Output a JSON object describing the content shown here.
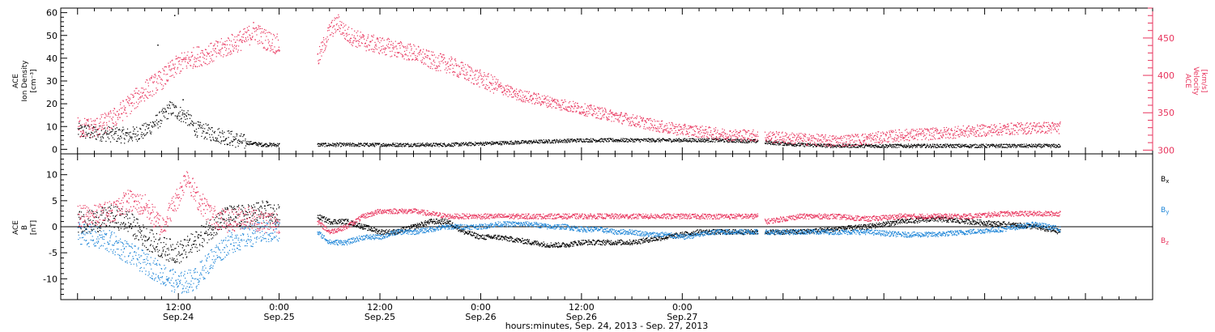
{
  "colors": {
    "black": "#000000",
    "red": "#e8335c",
    "blue": "#1f86d8"
  },
  "chart_data": [
    {
      "type": "scatter",
      "panel": "top",
      "ylabel_left": [
        "ACE",
        "Ion Density",
        "[cm⁻³]"
      ],
      "ylabel_right": [
        "ACE",
        "Velocity",
        "[km/s]"
      ],
      "ylim_left": [
        -2,
        62
      ],
      "yticks_left": [
        0,
        10,
        20,
        30,
        40,
        50,
        60
      ],
      "ylim_right": [
        295,
        490
      ],
      "yticks_right": [
        300,
        350,
        400,
        450
      ],
      "data_gaps_hours": [
        [
          24.0,
          28.5
        ],
        [
          81.0,
          81.8
        ]
      ],
      "series": [
        {
          "color": "black",
          "axis": "left",
          "points": [
            [
              0,
              8
            ],
            [
              3,
              7
            ],
            [
              6,
              6
            ],
            [
              8,
              8
            ],
            [
              10,
              14
            ],
            [
              11,
              18
            ],
            [
              12,
              16
            ],
            [
              13,
              14
            ],
            [
              14,
              9
            ],
            [
              16,
              7
            ],
            [
              18,
              5
            ],
            [
              20,
              3
            ],
            [
              22,
              2
            ],
            [
              24,
              2
            ],
            [
              28.5,
              2
            ],
            [
              32,
              2
            ],
            [
              36,
              2
            ],
            [
              40,
              2
            ],
            [
              44,
              2
            ],
            [
              48,
              2.5
            ],
            [
              52,
              3
            ],
            [
              56,
              3.5
            ],
            [
              60,
              4
            ],
            [
              64,
              4
            ],
            [
              68,
              4
            ],
            [
              72,
              4
            ],
            [
              76,
              4
            ],
            [
              81,
              3.5
            ],
            [
              82,
              3
            ],
            [
              86,
              2
            ],
            [
              90,
              1.5
            ],
            [
              94,
              1.5
            ],
            [
              98,
              1.5
            ],
            [
              102,
              1.5
            ],
            [
              106,
              1.5
            ],
            [
              110,
              1.5
            ],
            [
              114,
              1.5
            ],
            [
              117,
              1.5
            ]
          ],
          "outliers": [
            [
              9.5,
              46
            ],
            [
              11.5,
              59
            ],
            [
              12.5,
              22
            ]
          ]
        },
        {
          "color": "red",
          "axis": "right",
          "points": [
            [
              0,
              330
            ],
            [
              2,
              330
            ],
            [
              4,
              340
            ],
            [
              6,
              360
            ],
            [
              8,
              380
            ],
            [
              10,
              395
            ],
            [
              12,
              415
            ],
            [
              14,
              425
            ],
            [
              16,
              430
            ],
            [
              18,
              440
            ],
            [
              20,
              450
            ],
            [
              21,
              460
            ],
            [
              22,
              450
            ],
            [
              24,
              440
            ],
            [
              28.5,
              420
            ],
            [
              30,
              460
            ],
            [
              31,
              470
            ],
            [
              32,
              455
            ],
            [
              34,
              445
            ],
            [
              36,
              440
            ],
            [
              38,
              435
            ],
            [
              40,
              430
            ],
            [
              42,
              420
            ],
            [
              44,
              415
            ],
            [
              46,
              405
            ],
            [
              48,
              395
            ],
            [
              50,
              385
            ],
            [
              52,
              375
            ],
            [
              54,
              370
            ],
            [
              56,
              365
            ],
            [
              58,
              360
            ],
            [
              60,
              355
            ],
            [
              62,
              350
            ],
            [
              64,
              345
            ],
            [
              66,
              340
            ],
            [
              68,
              335
            ],
            [
              70,
              330
            ],
            [
              72,
              327
            ],
            [
              74,
              325
            ],
            [
              76,
              322
            ],
            [
              78,
              320
            ],
            [
              80,
              320
            ],
            [
              82,
              318
            ],
            [
              86,
              315
            ],
            [
              90,
              312
            ],
            [
              94,
              315
            ],
            [
              98,
              320
            ],
            [
              102,
              322
            ],
            [
              106,
              325
            ],
            [
              110,
              328
            ],
            [
              114,
              330
            ],
            [
              117,
              330
            ]
          ]
        }
      ]
    },
    {
      "type": "scatter",
      "panel": "bottom",
      "ylabel_left": [
        "ACE",
        "B",
        "[nT]"
      ],
      "ylim": [
        -14,
        14
      ],
      "yticks": [
        -10,
        -5,
        0,
        5,
        10
      ],
      "legend_position": "right",
      "legend": [
        {
          "text": "B",
          "sub": "x",
          "color": "black"
        },
        {
          "text": "B",
          "sub": "y",
          "color": "blue"
        },
        {
          "text": "B",
          "sub": "z",
          "color": "red"
        }
      ],
      "data_gaps_hours": [
        [
          24.0,
          28.5
        ],
        [
          81.0,
          81.8
        ]
      ],
      "series": [
        {
          "color": "black",
          "points": [
            [
              0,
              1
            ],
            [
              2,
              1
            ],
            [
              4,
              2
            ],
            [
              6,
              1
            ],
            [
              8,
              -2
            ],
            [
              10,
              -4
            ],
            [
              12,
              -5
            ],
            [
              14,
              -3
            ],
            [
              16,
              0
            ],
            [
              18,
              2
            ],
            [
              20,
              2
            ],
            [
              22,
              3
            ],
            [
              24,
              2
            ],
            [
              28.5,
              2
            ],
            [
              30,
              1
            ],
            [
              32,
              1
            ],
            [
              34,
              0
            ],
            [
              36,
              -1
            ],
            [
              38,
              -1
            ],
            [
              40,
              0
            ],
            [
              42,
              1
            ],
            [
              44,
              1
            ],
            [
              46,
              -1
            ],
            [
              48,
              -2
            ],
            [
              50,
              -2
            ],
            [
              52,
              -2.5
            ],
            [
              54,
              -3
            ],
            [
              56,
              -3.5
            ],
            [
              58,
              -3.5
            ],
            [
              60,
              -3
            ],
            [
              62,
              -3
            ],
            [
              64,
              -3
            ],
            [
              66,
              -3
            ],
            [
              68,
              -2.5
            ],
            [
              70,
              -2
            ],
            [
              72,
              -1.5
            ],
            [
              74,
              -1
            ],
            [
              76,
              -1
            ],
            [
              78,
              -1
            ],
            [
              80,
              -1
            ],
            [
              81,
              -1
            ],
            [
              82,
              -1
            ],
            [
              86,
              -1
            ],
            [
              90,
              -0.5
            ],
            [
              94,
              0
            ],
            [
              98,
              1
            ],
            [
              102,
              1.5
            ],
            [
              106,
              1
            ],
            [
              110,
              0.5
            ],
            [
              114,
              0
            ],
            [
              117,
              -1
            ]
          ]
        },
        {
          "color": "blue",
          "points": [
            [
              0,
              -1
            ],
            [
              2,
              -2
            ],
            [
              4,
              -3
            ],
            [
              6,
              -5
            ],
            [
              8,
              -7
            ],
            [
              10,
              -9
            ],
            [
              12,
              -11
            ],
            [
              14,
              -10
            ],
            [
              16,
              -6
            ],
            [
              18,
              -3
            ],
            [
              20,
              -2
            ],
            [
              22,
              -1
            ],
            [
              24,
              -1
            ],
            [
              28.5,
              -1
            ],
            [
              30,
              -3
            ],
            [
              32,
              -3
            ],
            [
              34,
              -2
            ],
            [
              36,
              -2
            ],
            [
              38,
              -1
            ],
            [
              40,
              -1
            ],
            [
              42,
              -0.5
            ],
            [
              44,
              0
            ],
            [
              46,
              0
            ],
            [
              48,
              0
            ],
            [
              50,
              0.5
            ],
            [
              52,
              0.5
            ],
            [
              54,
              0.5
            ],
            [
              56,
              0
            ],
            [
              58,
              0
            ],
            [
              60,
              -0.5
            ],
            [
              62,
              -0.5
            ],
            [
              64,
              -1
            ],
            [
              66,
              -1
            ],
            [
              68,
              -1.5
            ],
            [
              70,
              -1.5
            ],
            [
              72,
              -2
            ],
            [
              74,
              -1.5
            ],
            [
              76,
              -1
            ],
            [
              78,
              -1
            ],
            [
              80,
              -1
            ],
            [
              81,
              -1
            ],
            [
              82,
              -1
            ],
            [
              86,
              -1
            ],
            [
              90,
              -1
            ],
            [
              94,
              -1
            ],
            [
              98,
              -1.5
            ],
            [
              102,
              -1.5
            ],
            [
              106,
              -1
            ],
            [
              110,
              -0.5
            ],
            [
              114,
              0.5
            ],
            [
              117,
              -0.5
            ]
          ]
        },
        {
          "color": "red",
          "points": [
            [
              0,
              2
            ],
            [
              2,
              2
            ],
            [
              4,
              3
            ],
            [
              6,
              5
            ],
            [
              8,
              4
            ],
            [
              10,
              0
            ],
            [
              12,
              6
            ],
            [
              13,
              10
            ],
            [
              14,
              6
            ],
            [
              16,
              2
            ],
            [
              18,
              1
            ],
            [
              20,
              2
            ],
            [
              22,
              1
            ],
            [
              24,
              1
            ],
            [
              28.5,
              1
            ],
            [
              30,
              -1
            ],
            [
              32,
              0
            ],
            [
              34,
              2
            ],
            [
              36,
              3
            ],
            [
              38,
              3
            ],
            [
              40,
              3
            ],
            [
              42,
              2.5
            ],
            [
              44,
              2
            ],
            [
              46,
              2
            ],
            [
              48,
              2
            ],
            [
              50,
              2
            ],
            [
              52,
              2
            ],
            [
              54,
              2
            ],
            [
              56,
              2
            ],
            [
              58,
              2
            ],
            [
              60,
              2
            ],
            [
              62,
              2
            ],
            [
              64,
              2
            ],
            [
              66,
              2
            ],
            [
              68,
              2
            ],
            [
              70,
              2
            ],
            [
              72,
              2
            ],
            [
              74,
              2
            ],
            [
              76,
              2
            ],
            [
              78,
              2
            ],
            [
              80,
              2
            ],
            [
              81,
              2
            ],
            [
              82,
              1
            ],
            [
              86,
              2
            ],
            [
              90,
              2
            ],
            [
              94,
              1.5
            ],
            [
              98,
              2
            ],
            [
              102,
              2
            ],
            [
              106,
              2
            ],
            [
              110,
              2.5
            ],
            [
              114,
              2.5
            ],
            [
              117,
              2.5
            ]
          ]
        }
      ]
    }
  ],
  "x_axis": {
    "range_hours": [
      -2,
      128
    ],
    "tick_labels": [
      {
        "h": 12,
        "time": "12:00",
        "date": "Sep.24"
      },
      {
        "h": 24,
        "time": "0:00",
        "date": "Sep.25"
      },
      {
        "h": 36,
        "time": "12:00",
        "date": "Sep.25"
      },
      {
        "h": 48,
        "time": "0:00",
        "date": "Sep.26"
      },
      {
        "h": 60,
        "time": "12:00",
        "date": "Sep.26"
      },
      {
        "h": 72,
        "time": "0:00",
        "date": "Sep.27"
      }
    ],
    "label": "hours:minutes, Sep. 24, 2013 - Sep. 27, 2013"
  }
}
